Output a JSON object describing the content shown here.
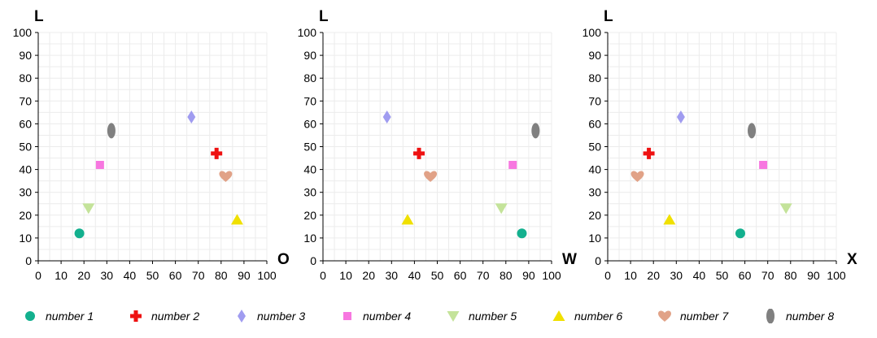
{
  "chart_data": [
    {
      "type": "scatter",
      "ylabel": "L",
      "xlabel": "O",
      "xlim": [
        0,
        100
      ],
      "ylim": [
        0,
        100
      ],
      "x_ticks": [
        "0",
        "10",
        "20",
        "30",
        "40",
        "50",
        "60",
        "70",
        "80",
        "90",
        "100"
      ],
      "y_ticks": [
        "0",
        "10",
        "20",
        "30",
        "40",
        "50",
        "60",
        "70",
        "80",
        "90",
        "100"
      ],
      "grid": true,
      "series": [
        {
          "name": "number 1",
          "x": 18,
          "y": 12
        },
        {
          "name": "number 2",
          "x": 78,
          "y": 47
        },
        {
          "name": "number 3",
          "x": 67,
          "y": 63
        },
        {
          "name": "number 4",
          "x": 27,
          "y": 42
        },
        {
          "name": "number 5",
          "x": 22,
          "y": 23
        },
        {
          "name": "number 6",
          "x": 87,
          "y": 18
        },
        {
          "name": "number 7",
          "x": 82,
          "y": 37
        },
        {
          "name": "number 8",
          "x": 32,
          "y": 57
        }
      ]
    },
    {
      "type": "scatter",
      "ylabel": "L",
      "xlabel": "W",
      "xlim": [
        0,
        100
      ],
      "ylim": [
        0,
        100
      ],
      "x_ticks": [
        "0",
        "10",
        "20",
        "30",
        "40",
        "50",
        "60",
        "70",
        "80",
        "90",
        "100"
      ],
      "y_ticks": [
        "0",
        "10",
        "20",
        "30",
        "40",
        "50",
        "60",
        "70",
        "80",
        "90",
        "100"
      ],
      "grid": true,
      "series": [
        {
          "name": "number 1",
          "x": 87,
          "y": 12
        },
        {
          "name": "number 2",
          "x": 42,
          "y": 47
        },
        {
          "name": "number 3",
          "x": 28,
          "y": 63
        },
        {
          "name": "number 4",
          "x": 83,
          "y": 42
        },
        {
          "name": "number 5",
          "x": 78,
          "y": 23
        },
        {
          "name": "number 6",
          "x": 37,
          "y": 18
        },
        {
          "name": "number 7",
          "x": 47,
          "y": 37
        },
        {
          "name": "number 8",
          "x": 93,
          "y": 57
        }
      ]
    },
    {
      "type": "scatter",
      "ylabel": "L",
      "xlabel": "X",
      "xlim": [
        0,
        100
      ],
      "ylim": [
        0,
        100
      ],
      "x_ticks": [
        "0",
        "10",
        "20",
        "30",
        "40",
        "50",
        "60",
        "70",
        "80",
        "90",
        "100"
      ],
      "y_ticks": [
        "0",
        "10",
        "20",
        "30",
        "40",
        "50",
        "60",
        "70",
        "80",
        "90",
        "100"
      ],
      "grid": true,
      "series": [
        {
          "name": "number 1",
          "x": 58,
          "y": 12
        },
        {
          "name": "number 2",
          "x": 18,
          "y": 47
        },
        {
          "name": "number 3",
          "x": 32,
          "y": 63
        },
        {
          "name": "number 4",
          "x": 68,
          "y": 42
        },
        {
          "name": "number 5",
          "x": 78,
          "y": 23
        },
        {
          "name": "number 6",
          "x": 27,
          "y": 18
        },
        {
          "name": "number 7",
          "x": 13,
          "y": 37
        },
        {
          "name": "number 8",
          "x": 63,
          "y": 57
        }
      ]
    }
  ],
  "legend": {
    "placement": "bottom",
    "items": [
      {
        "label": "number 1",
        "shape": "circle",
        "color": "#13b08e"
      },
      {
        "label": "number 2",
        "shape": "cross",
        "color": "#ee1111"
      },
      {
        "label": "number 3",
        "shape": "diamond",
        "color": "#a09cf0"
      },
      {
        "label": "number 4",
        "shape": "square",
        "color": "#f777e0"
      },
      {
        "label": "number 5",
        "shape": "triangle-down",
        "color": "#c4e39a"
      },
      {
        "label": "number 6",
        "shape": "triangle-up",
        "color": "#f0e000"
      },
      {
        "label": "number 7",
        "shape": "heart",
        "color": "#e1a287"
      },
      {
        "label": "number 8",
        "shape": "ellipse",
        "color": "#808080"
      }
    ]
  }
}
